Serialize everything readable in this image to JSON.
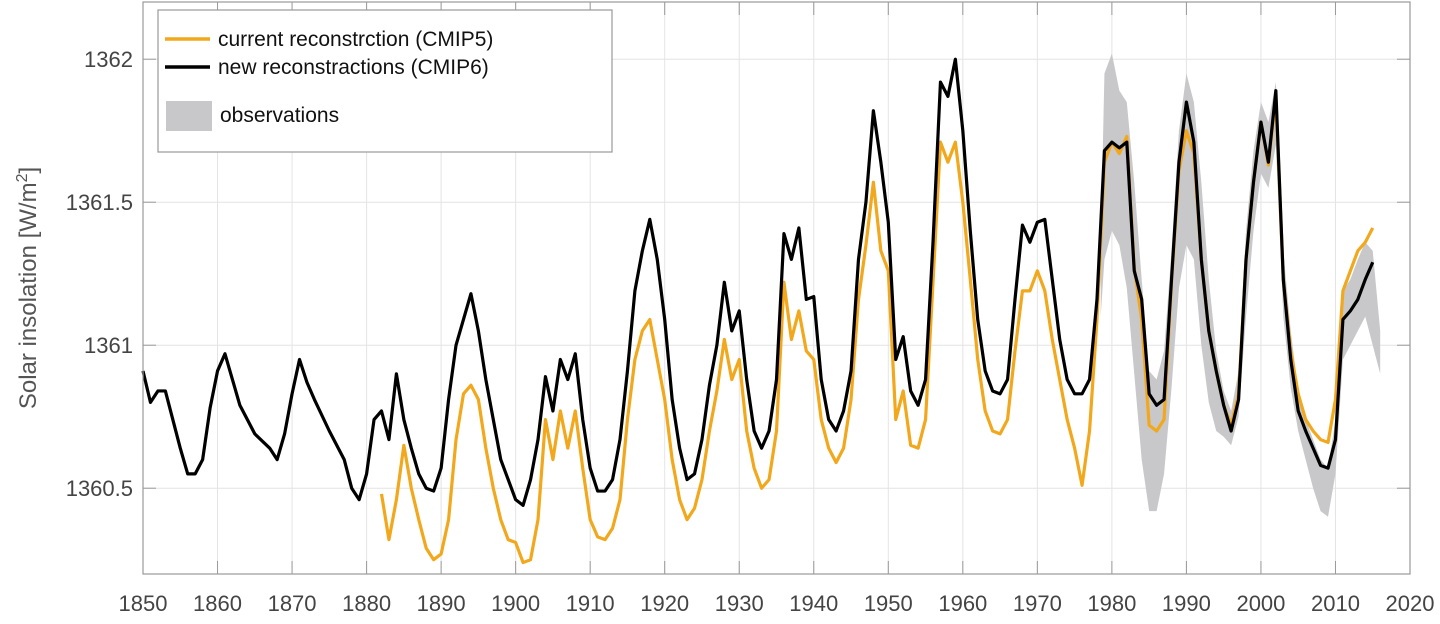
{
  "chart_data": {
    "type": "line",
    "title": "",
    "xlabel": "",
    "ylabel": "Solar insolation [W/m²]",
    "ylabel_main": "Solar insolation [W/m",
    "ylabel_sup": "2",
    "ylabel_end": "]",
    "xlim": [
      1850,
      2020
    ],
    "ylim": [
      1360.2,
      1362.2
    ],
    "grid": true,
    "legend_position": "top-left",
    "x_ticks": [
      1850,
      1860,
      1870,
      1880,
      1890,
      1900,
      1910,
      1920,
      1930,
      1940,
      1950,
      1960,
      1970,
      1980,
      1990,
      2000,
      2010,
      2020
    ],
    "x_tick_labels": [
      "1850",
      "1860",
      "1870",
      "1880",
      "1890",
      "1900",
      "1910",
      "1920",
      "1930",
      "1940",
      "1950",
      "1960",
      "1970",
      "1980",
      "1990",
      "2000",
      "2010",
      "2020"
    ],
    "y_ticks": [
      1360.5,
      1361,
      1361.5,
      1362
    ],
    "y_tick_labels": [
      "1360.5",
      "1361",
      "1361.5",
      "1362"
    ],
    "colors": {
      "cmip5": "#F2A81D",
      "cmip6": "#000000",
      "observations": "#C8C8CA"
    },
    "series": [
      {
        "name": "current reconstrction (CMIP5)",
        "x": [
          1882,
          1883,
          1884,
          1885,
          1886,
          1887,
          1888,
          1889,
          1890,
          1891,
          1892,
          1893,
          1894,
          1895,
          1896,
          1897,
          1898,
          1899,
          1900,
          1901,
          1902,
          1903,
          1904,
          1905,
          1906,
          1907,
          1908,
          1909,
          1910,
          1911,
          1912,
          1913,
          1914,
          1915,
          1916,
          1917,
          1918,
          1919,
          1920,
          1921,
          1922,
          1923,
          1924,
          1925,
          1926,
          1927,
          1928,
          1929,
          1930,
          1931,
          1932,
          1933,
          1934,
          1935,
          1936,
          1937,
          1938,
          1939,
          1940,
          1941,
          1942,
          1943,
          1944,
          1945,
          1946,
          1947,
          1948,
          1949,
          1950,
          1951,
          1952,
          1953,
          1954,
          1955,
          1956,
          1957,
          1958,
          1959,
          1960,
          1961,
          1962,
          1963,
          1964,
          1965,
          1966,
          1967,
          1968,
          1969,
          1970,
          1971,
          1972,
          1973,
          1974,
          1975,
          1976,
          1977,
          1978,
          1979,
          1980,
          1981,
          1982,
          1983,
          1984,
          1985,
          1986,
          1987,
          1988,
          1989,
          1990,
          1991,
          1992,
          1993,
          1994,
          1995,
          1996,
          1997,
          1998,
          1999,
          2000,
          2001,
          2002,
          2003,
          2004,
          2005,
          2006,
          2007,
          2008,
          2009,
          2010,
          2011,
          2012,
          2013,
          2014,
          2015
        ],
        "y": [
          1360.48,
          1360.32,
          1360.46,
          1360.65,
          1360.5,
          1360.39,
          1360.29,
          1360.25,
          1360.27,
          1360.39,
          1360.67,
          1360.83,
          1360.86,
          1360.81,
          1360.64,
          1360.5,
          1360.39,
          1360.32,
          1360.31,
          1360.24,
          1360.25,
          1360.39,
          1360.74,
          1360.6,
          1360.77,
          1360.64,
          1360.77,
          1360.57,
          1360.39,
          1360.33,
          1360.32,
          1360.36,
          1360.46,
          1360.74,
          1360.95,
          1361.05,
          1361.09,
          1360.95,
          1360.81,
          1360.6,
          1360.46,
          1360.39,
          1360.43,
          1360.53,
          1360.7,
          1360.84,
          1361.02,
          1360.88,
          1360.95,
          1360.7,
          1360.57,
          1360.5,
          1360.53,
          1360.7,
          1361.22,
          1361.02,
          1361.12,
          1360.98,
          1360.95,
          1360.74,
          1360.64,
          1360.59,
          1360.64,
          1360.81,
          1361.16,
          1361.35,
          1361.57,
          1361.33,
          1361.26,
          1360.74,
          1360.84,
          1360.65,
          1360.64,
          1360.74,
          1361.22,
          1361.71,
          1361.64,
          1361.71,
          1361.5,
          1361.23,
          1360.95,
          1360.77,
          1360.7,
          1360.69,
          1360.74,
          1360.98,
          1361.19,
          1361.19,
          1361.26,
          1361.19,
          1361.02,
          1360.88,
          1360.74,
          1360.64,
          1360.51,
          1360.7,
          1361.09,
          1361.64,
          1361.71,
          1361.67,
          1361.73,
          1361.27,
          1361.09,
          1360.72,
          1360.7,
          1360.74,
          1361.22,
          1361.61,
          1361.75,
          1361.67,
          1361.3,
          1361.05,
          1360.91,
          1360.79,
          1360.72,
          1360.83,
          1361.3,
          1361.57,
          1361.78,
          1361.63,
          1361.87,
          1361.23,
          1360.98,
          1360.83,
          1360.74,
          1360.7,
          1360.67,
          1360.66,
          1360.81,
          1361.19,
          1361.26,
          1361.33,
          1361.36,
          1361.41
        ]
      },
      {
        "name": "new reconstractions (CMIP6)",
        "x": [
          1850,
          1851,
          1852,
          1853,
          1855,
          1856,
          1857,
          1858,
          1859,
          1860,
          1861,
          1862,
          1863,
          1865,
          1867,
          1868,
          1869,
          1870,
          1871,
          1872,
          1873,
          1875,
          1877,
          1878,
          1879,
          1880,
          1881,
          1882,
          1883,
          1884,
          1885,
          1886,
          1887,
          1888,
          1889,
          1890,
          1891,
          1892,
          1893,
          1894,
          1895,
          1896,
          1897,
          1898,
          1899,
          1900,
          1901,
          1902,
          1903,
          1904,
          1905,
          1906,
          1907,
          1908,
          1909,
          1910,
          1911,
          1912,
          1913,
          1914,
          1915,
          1916,
          1917,
          1918,
          1919,
          1920,
          1921,
          1922,
          1923,
          1924,
          1925,
          1926,
          1927,
          1928,
          1929,
          1930,
          1931,
          1932,
          1933,
          1934,
          1935,
          1936,
          1937,
          1938,
          1939,
          1940,
          1941,
          1942,
          1943,
          1944,
          1945,
          1946,
          1947,
          1948,
          1949,
          1950,
          1951,
          1952,
          1953,
          1954,
          1955,
          1956,
          1957,
          1958,
          1959,
          1960,
          1961,
          1962,
          1963,
          1964,
          1965,
          1966,
          1967,
          1968,
          1969,
          1970,
          1971,
          1972,
          1973,
          1974,
          1975,
          1976,
          1977,
          1978,
          1979,
          1980,
          1981,
          1982,
          1983,
          1984,
          1985,
          1986,
          1987,
          1988,
          1989,
          1990,
          1991,
          1992,
          1993,
          1994,
          1995,
          1996,
          1997,
          1998,
          1999,
          2000,
          2001,
          2002,
          2003,
          2004,
          2005,
          2006,
          2007,
          2008,
          2009,
          2010,
          2011,
          2012,
          2013,
          2014,
          2015
        ],
        "y": [
          1360.91,
          1360.8,
          1360.84,
          1360.84,
          1360.64,
          1360.55,
          1360.55,
          1360.6,
          1360.78,
          1360.91,
          1360.97,
          1360.88,
          1360.79,
          1360.69,
          1360.64,
          1360.6,
          1360.69,
          1360.83,
          1360.95,
          1360.87,
          1360.81,
          1360.7,
          1360.6,
          1360.5,
          1360.46,
          1360.55,
          1360.74,
          1360.77,
          1360.67,
          1360.9,
          1360.74,
          1360.64,
          1360.55,
          1360.5,
          1360.49,
          1360.57,
          1360.81,
          1361.0,
          1361.09,
          1361.18,
          1361.05,
          1360.88,
          1360.74,
          1360.6,
          1360.53,
          1360.46,
          1360.44,
          1360.53,
          1360.67,
          1360.89,
          1360.77,
          1360.95,
          1360.88,
          1360.97,
          1360.74,
          1360.57,
          1360.49,
          1360.49,
          1360.53,
          1360.67,
          1360.91,
          1361.19,
          1361.33,
          1361.44,
          1361.3,
          1361.09,
          1360.81,
          1360.64,
          1360.53,
          1360.55,
          1360.67,
          1360.86,
          1361.0,
          1361.22,
          1361.05,
          1361.12,
          1360.88,
          1360.7,
          1360.64,
          1360.7,
          1360.88,
          1361.39,
          1361.3,
          1361.41,
          1361.16,
          1361.17,
          1360.88,
          1360.74,
          1360.7,
          1360.77,
          1360.91,
          1361.3,
          1361.5,
          1361.82,
          1361.64,
          1361.43,
          1360.95,
          1361.03,
          1360.84,
          1360.79,
          1360.88,
          1361.36,
          1361.92,
          1361.87,
          1362.0,
          1361.75,
          1361.4,
          1361.09,
          1360.91,
          1360.84,
          1360.83,
          1360.88,
          1361.16,
          1361.42,
          1361.36,
          1361.43,
          1361.44,
          1361.23,
          1361.02,
          1360.88,
          1360.83,
          1360.83,
          1360.88,
          1361.16,
          1361.68,
          1361.71,
          1361.69,
          1361.71,
          1361.26,
          1361.16,
          1360.83,
          1360.79,
          1360.81,
          1361.23,
          1361.64,
          1361.85,
          1361.71,
          1361.3,
          1361.05,
          1360.91,
          1360.79,
          1360.7,
          1360.81,
          1361.3,
          1361.57,
          1361.78,
          1361.64,
          1361.89,
          1361.23,
          1360.95,
          1360.77,
          1360.7,
          1360.64,
          1360.58,
          1360.57,
          1360.67,
          1361.09,
          1361.12,
          1361.16,
          1361.23,
          1361.29
        ]
      }
    ],
    "band": {
      "name": "observations",
      "x": [
        1978.5,
        1979,
        1980,
        1981,
        1982,
        1983,
        1984,
        1985,
        1986,
        1987,
        1988,
        1989,
        1990,
        1991,
        1992,
        1993,
        1994,
        1995,
        1996,
        1997,
        1998,
        1999,
        2000,
        2001,
        2002,
        2003,
        2004,
        2005,
        2006,
        2007,
        2008,
        2009,
        2010,
        2011,
        2012,
        2013,
        2014,
        2015,
        2016
      ],
      "upper": [
        1361.35,
        1361.95,
        1362.02,
        1361.89,
        1361.85,
        1361.57,
        1361.23,
        1360.91,
        1360.88,
        1360.98,
        1361.33,
        1361.75,
        1361.95,
        1361.85,
        1361.57,
        1361.23,
        1360.98,
        1360.84,
        1360.77,
        1360.91,
        1361.4,
        1361.68,
        1361.85,
        1361.78,
        1361.92,
        1361.33,
        1361.05,
        1360.84,
        1360.74,
        1360.67,
        1360.6,
        1360.57,
        1360.74,
        1361.19,
        1361.23,
        1361.3,
        1361.36,
        1361.33,
        1361.05
      ],
      "lower": [
        1361.1,
        1361.3,
        1361.4,
        1361.35,
        1361.2,
        1360.9,
        1360.6,
        1360.42,
        1360.42,
        1360.55,
        1360.85,
        1361.2,
        1361.35,
        1361.3,
        1361.0,
        1360.8,
        1360.7,
        1360.68,
        1360.65,
        1360.75,
        1361.1,
        1361.4,
        1361.6,
        1361.55,
        1361.7,
        1361.1,
        1360.85,
        1360.7,
        1360.6,
        1360.5,
        1360.42,
        1360.4,
        1360.55,
        1360.95,
        1361.0,
        1361.05,
        1361.1,
        1361.0,
        1360.9
      ]
    },
    "legend": [
      {
        "label": "current reconstrction (CMIP5)"
      },
      {
        "label": "new reconstractions (CMIP6)"
      },
      {
        "label": "observations"
      }
    ]
  }
}
